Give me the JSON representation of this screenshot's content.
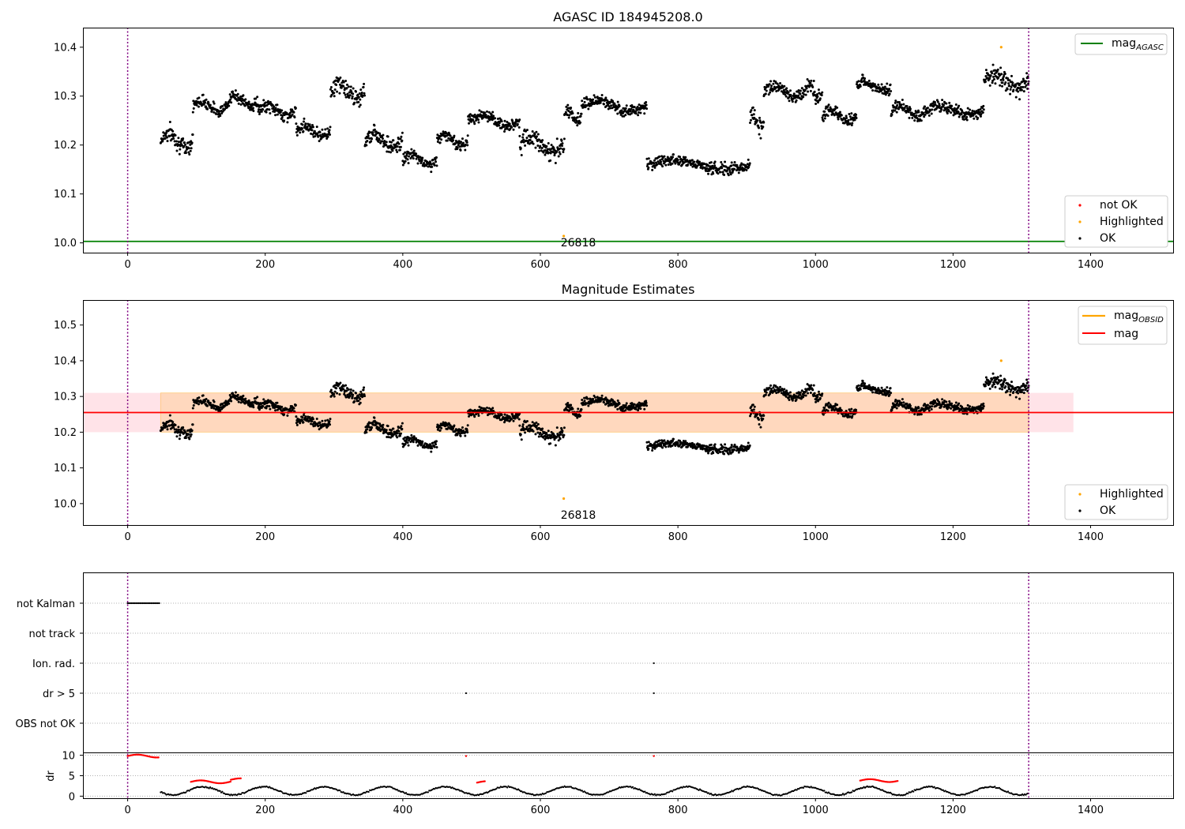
{
  "chart_data": [
    {
      "type": "scatter",
      "title": "AGASC ID 184945208.0",
      "xlim": [
        -65,
        1520
      ],
      "ylim": [
        9.98,
        10.44
      ],
      "xticks": [
        0,
        200,
        400,
        600,
        800,
        1000,
        1200,
        1400
      ],
      "yticks": [
        10.0,
        10.1,
        10.2,
        10.3,
        10.4
      ],
      "vlines": [
        0,
        1310
      ],
      "hline": {
        "y": 10.003,
        "color": "#008000"
      },
      "line_legend": [
        {
          "label": "mag",
          "subscript": "AGASC",
          "color": "#008000"
        }
      ],
      "point_legend": [
        {
          "label": "not OK",
          "color": "#ff0000"
        },
        {
          "label": "Highlighted",
          "color": "#ffa500"
        },
        {
          "label": "OK",
          "color": "#000000"
        }
      ],
      "highlighted_points": [
        {
          "x": 634,
          "y": 10.014
        },
        {
          "x": 1270,
          "y": 10.4
        }
      ],
      "annotation": {
        "text": "26818",
        "x": 634,
        "y": 10.014
      },
      "ok_series_segments": [
        {
          "x0": 48,
          "x1": 95,
          "base": 10.21,
          "amp": 0.03
        },
        {
          "x0": 95,
          "x1": 145,
          "base": 10.28,
          "amp": 0.02
        },
        {
          "x0": 145,
          "x1": 190,
          "base": 10.29,
          "amp": 0.02
        },
        {
          "x0": 190,
          "x1": 245,
          "base": 10.27,
          "amp": 0.02
        },
        {
          "x0": 245,
          "x1": 295,
          "base": 10.23,
          "amp": 0.02
        },
        {
          "x0": 295,
          "x1": 345,
          "base": 10.31,
          "amp": 0.03
        },
        {
          "x0": 345,
          "x1": 400,
          "base": 10.21,
          "amp": 0.03
        },
        {
          "x0": 400,
          "x1": 450,
          "base": 10.17,
          "amp": 0.02
        },
        {
          "x0": 450,
          "x1": 495,
          "base": 10.21,
          "amp": 0.02
        },
        {
          "x0": 495,
          "x1": 570,
          "base": 10.25,
          "amp": 0.02
        },
        {
          "x0": 570,
          "x1": 635,
          "base": 10.2,
          "amp": 0.03
        },
        {
          "x0": 635,
          "x1": 660,
          "base": 10.26,
          "amp": 0.02
        },
        {
          "x0": 660,
          "x1": 755,
          "base": 10.28,
          "amp": 0.02
        },
        {
          "x0": 755,
          "x1": 905,
          "base": 10.16,
          "amp": 0.02
        },
        {
          "x0": 905,
          "x1": 925,
          "base": 10.25,
          "amp": 0.03
        },
        {
          "x0": 925,
          "x1": 985,
          "base": 10.31,
          "amp": 0.02
        },
        {
          "x0": 985,
          "x1": 1010,
          "base": 10.31,
          "amp": 0.03
        },
        {
          "x0": 1010,
          "x1": 1060,
          "base": 10.26,
          "amp": 0.02
        },
        {
          "x0": 1060,
          "x1": 1110,
          "base": 10.32,
          "amp": 0.02
        },
        {
          "x0": 1110,
          "x1": 1160,
          "base": 10.27,
          "amp": 0.02
        },
        {
          "x0": 1160,
          "x1": 1245,
          "base": 10.27,
          "amp": 0.02
        },
        {
          "x0": 1245,
          "x1": 1310,
          "base": 10.33,
          "amp": 0.03
        }
      ]
    },
    {
      "type": "scatter",
      "title": "Magnitude Estimates",
      "xlim": [
        -65,
        1520
      ],
      "ylim": [
        9.94,
        10.57
      ],
      "xticks": [
        0,
        200,
        400,
        600,
        800,
        1000,
        1200,
        1400
      ],
      "yticks": [
        10.0,
        10.1,
        10.2,
        10.3,
        10.4,
        10.5
      ],
      "vlines": [
        0,
        1310
      ],
      "mag_line": {
        "y": 10.255,
        "color": "#ff0000"
      },
      "mag_band": {
        "y0": 10.2,
        "y1": 10.31,
        "color": "#ffa500",
        "x_end": 1375
      },
      "line_legend": [
        {
          "label": "mag",
          "subscript": "OBSID",
          "color": "#ffa500"
        },
        {
          "label": "mag",
          "subscript": "",
          "color": "#ff0000"
        }
      ],
      "point_legend": [
        {
          "label": "Highlighted",
          "color": "#ffa500"
        },
        {
          "label": "OK",
          "color": "#000000"
        }
      ],
      "highlighted_points": [
        {
          "x": 634,
          "y": 10.014
        },
        {
          "x": 1270,
          "y": 10.4
        }
      ],
      "annotation": {
        "text": "26818",
        "x": 634,
        "y": 10.014
      }
    },
    {
      "type": "scatter",
      "title": "",
      "xlim": [
        -65,
        1520
      ],
      "xticks": [
        0,
        200,
        400,
        600,
        800,
        1000,
        1200,
        1400
      ],
      "vlines": [
        0,
        1310
      ],
      "flag_rows": [
        "not Kalman",
        "not track",
        "Ion. rad.",
        "dr > 5",
        "OBS not OK"
      ],
      "flag_points": [
        {
          "row": "not Kalman",
          "x0": 0,
          "x1": 46
        },
        {
          "row": "Ion. rad.",
          "x0": 765,
          "x1": 765
        },
        {
          "row": "dr > 5",
          "x0": 492,
          "x1": 492
        },
        {
          "row": "dr > 5",
          "x0": 765,
          "x1": 765
        }
      ],
      "dr_axis": {
        "ylabel": "dr",
        "yticks": [
          0,
          5,
          10
        ],
        "ylim": [
          -0.5,
          10.5
        ]
      },
      "dr_red_segments": [
        {
          "x0": 0,
          "x1": 46,
          "y": 9.8
        },
        {
          "x0": 492,
          "x1": 492,
          "y": 9.8
        },
        {
          "x0": 765,
          "x1": 765,
          "y": 9.8
        },
        {
          "x0": 92,
          "x1": 150,
          "y": 3.5
        },
        {
          "x0": 150,
          "x1": 165,
          "y": 4.0
        },
        {
          "x0": 508,
          "x1": 520,
          "y": 3.3
        },
        {
          "x0": 1065,
          "x1": 1120,
          "y": 3.8
        }
      ]
    }
  ]
}
